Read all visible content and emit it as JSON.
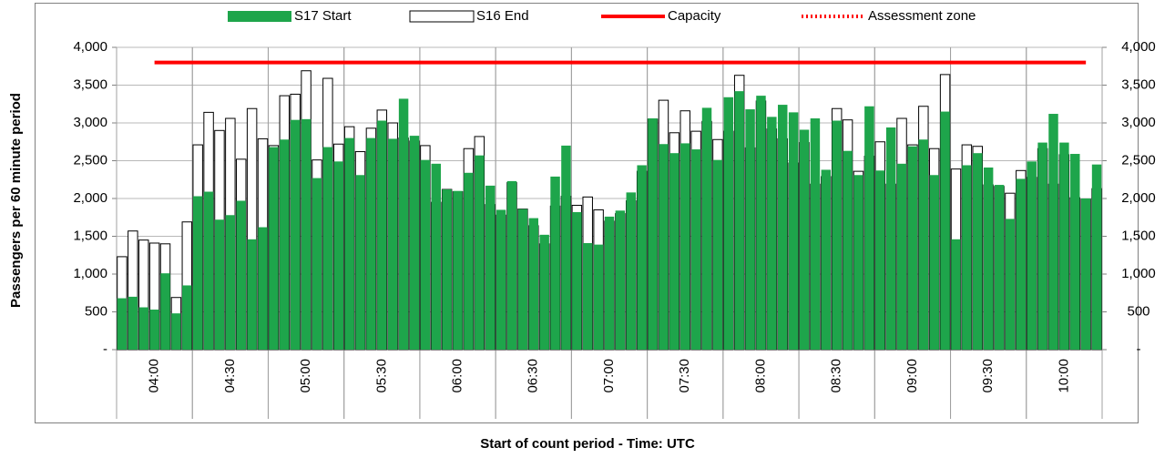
{
  "chart_data": {
    "type": "bar",
    "x_label": "Start of count period - Time: UTC",
    "y_label": "Passengers per 60 minute period",
    "categories": [
      null,
      null,
      null,
      "04:00",
      null,
      null,
      null,
      null,
      null,
      null,
      "04:30",
      null,
      null,
      null,
      null,
      null,
      null,
      "05:00",
      null,
      null,
      null,
      null,
      null,
      null,
      "05:30",
      null,
      null,
      null,
      null,
      null,
      null,
      "06:00",
      null,
      null,
      null,
      null,
      null,
      null,
      "06:30",
      null,
      null,
      null,
      null,
      null,
      null,
      "07:00",
      null,
      null,
      null,
      null,
      null,
      null,
      "07:30",
      null,
      null,
      null,
      null,
      null,
      null,
      "08:00",
      null,
      null,
      null,
      null,
      null,
      null,
      "08:30",
      null,
      null,
      null,
      null,
      null,
      null,
      "09:00",
      null,
      null,
      null,
      null,
      null,
      null,
      "09:30",
      null,
      null,
      null,
      null,
      null,
      null,
      "10:00",
      null,
      null,
      null
    ],
    "series": [
      {
        "name": "S17 Start",
        "type": "bar",
        "color": "#1ea54b",
        "values": [
          680,
          700,
          560,
          530,
          1010,
          480,
          850,
          2030,
          2090,
          1720,
          1780,
          1970,
          1460,
          1620,
          2680,
          2780,
          3040,
          3050,
          2270,
          2680,
          2490,
          2800,
          2310,
          2800,
          3030,
          2790,
          3320,
          2830,
          2510,
          2460,
          2120,
          2100,
          2340,
          2570,
          2170,
          1850,
          2230,
          1860,
          1740,
          1520,
          2290,
          2700,
          1820,
          1410,
          1390,
          1760,
          1840,
          2080,
          2440,
          3060,
          2720,
          2600,
          2730,
          2650,
          3200,
          2510,
          3340,
          3420,
          3180,
          3360,
          3080,
          3240,
          3140,
          2910,
          3060,
          2380,
          3030,
          2630,
          2310,
          3220,
          2370,
          2940,
          2460,
          2690,
          2780,
          2310,
          3150,
          1460,
          2440,
          2600,
          2410,
          2180,
          1730,
          2260,
          2490,
          2740,
          3120,
          2740,
          2590,
          2000,
          2450
        ]
      },
      {
        "name": "S16 End",
        "type": "bar",
        "color": "#ffffff",
        "edge": "#000000",
        "values": [
          1230,
          1570,
          1450,
          1410,
          1400,
          690,
          1690,
          2710,
          3140,
          2900,
          3060,
          2520,
          3190,
          2790,
          2700,
          3360,
          3380,
          3690,
          2510,
          3590,
          2720,
          2950,
          2620,
          2930,
          3170,
          3000,
          2800,
          2760,
          2700,
          1950,
          2120,
          2090,
          2660,
          2820,
          1920,
          1780,
          2210,
          1860,
          1640,
          1400,
          1900,
          2030,
          1910,
          2020,
          1850,
          1700,
          1800,
          1970,
          2360,
          3050,
          3300,
          2870,
          3160,
          2890,
          3020,
          2780,
          2890,
          3630,
          2670,
          3290,
          2920,
          2790,
          2470,
          2740,
          2190,
          2290,
          3190,
          3040,
          2360,
          2560,
          2750,
          2190,
          3060,
          2710,
          3220,
          2660,
          3640,
          2390,
          2710,
          2690,
          2180,
          2160,
          2070,
          2370,
          2280,
          2660,
          2190,
          2580,
          2010,
          1990,
          2130
        ]
      },
      {
        "name": "Capacity",
        "type": "line",
        "color": "#ff0000",
        "style": "solid",
        "values": [
          null,
          null,
          null,
          3800,
          3800,
          3800,
          3800,
          3800,
          3800,
          3800,
          3800,
          3800,
          3800,
          3800,
          3800,
          3800,
          3800,
          3800,
          3800,
          3800,
          3800,
          3800,
          3800,
          3800,
          3800,
          3800,
          3800,
          3800,
          3800,
          3800,
          3800,
          3800,
          3800,
          3800,
          3800,
          3800,
          3800,
          3800,
          3800,
          3800,
          3800,
          3800,
          3800,
          3800,
          3800,
          3800,
          3800,
          3800,
          3800,
          3800,
          3800,
          3800,
          3800,
          3800,
          3800,
          3800,
          3800,
          3800,
          3800,
          3800,
          3800,
          3800,
          3800,
          3800,
          3800,
          3800,
          3800,
          3800,
          3800,
          3800,
          3800,
          3800,
          3800,
          3800,
          3800,
          3800,
          3800,
          3800,
          3800,
          3800,
          3800,
          3800,
          3800,
          3800,
          3800,
          3800,
          3800,
          3800,
          3800,
          3800,
          null
        ]
      },
      {
        "name": "Assessment zone",
        "type": "line",
        "color": "#ff0000",
        "style": "dotted",
        "values": [
          null,
          null,
          null,
          null,
          null,
          null,
          null,
          null,
          null,
          null,
          null,
          null,
          null,
          null,
          null,
          null,
          null,
          null,
          null,
          null,
          null,
          null,
          null,
          null,
          null,
          null,
          null,
          null,
          null,
          null,
          null,
          null,
          null,
          null,
          null,
          null,
          null,
          null,
          null,
          null,
          null,
          null,
          null,
          null,
          null,
          null,
          null,
          null,
          null,
          null,
          null,
          null,
          null,
          null,
          null,
          null,
          null,
          null,
          null,
          null,
          null,
          null,
          null,
          null,
          null,
          null,
          null,
          null,
          null,
          null,
          null,
          null,
          null,
          null,
          null,
          null,
          null,
          null,
          null,
          null,
          null,
          null,
          null,
          null,
          null,
          null,
          null,
          null,
          null,
          null,
          null
        ]
      }
    ],
    "ylim": [
      0,
      4000
    ],
    "yticks": [
      {
        "value": 0,
        "label": "-"
      },
      500,
      {
        "value": 1000,
        "label": "1,000"
      },
      {
        "value": 1500,
        "label": "1,500"
      },
      {
        "value": 2000,
        "label": "2,000"
      },
      {
        "value": 2500,
        "label": "2,500"
      },
      {
        "value": 3000,
        "label": "3,000"
      },
      {
        "value": 3500,
        "label": "3,500"
      },
      {
        "value": 4000,
        "label": "4,000"
      }
    ],
    "y2lim": [
      0,
      4000
    ],
    "y2ticks": [
      {
        "value": 0,
        "label": "-"
      },
      500,
      {
        "value": 1000,
        "label": "1,000"
      },
      {
        "value": 1500,
        "label": "1,500"
      },
      {
        "value": 2000,
        "label": "2,000"
      },
      {
        "value": 2500,
        "label": "2,500"
      },
      {
        "value": 3000,
        "label": "3,000"
      },
      {
        "value": 3500,
        "label": "3,500"
      },
      {
        "value": 4000,
        "label": "4,000"
      }
    ],
    "grid": true,
    "legend": "top"
  }
}
